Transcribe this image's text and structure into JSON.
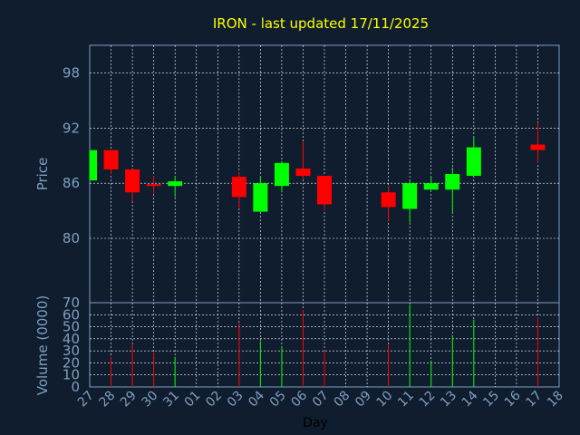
{
  "chart_data": {
    "type": "candlestick",
    "title": "IRON - last updated 17/11/2025",
    "xlabel": "Day",
    "x_ticks": [
      "27",
      "28",
      "29",
      "30",
      "31",
      "01",
      "02",
      "03",
      "04",
      "05",
      "06",
      "07",
      "08",
      "09",
      "10",
      "11",
      "12",
      "13",
      "14",
      "15",
      "16",
      "17",
      "18"
    ],
    "colors": {
      "up": "#00ff00",
      "down": "#ff0000",
      "background": "#0f1d2e",
      "text": "#7f9fbf",
      "title": "#ffff00",
      "grid": "#ffffff"
    },
    "price_panel": {
      "ylabel": "Price",
      "ylim": [
        73,
        101
      ],
      "yticks": [
        80,
        86,
        92,
        98
      ],
      "candles": [
        {
          "day": "27",
          "open": 86.3,
          "close": 89.6,
          "high": 89.6,
          "low": 86.3
        },
        {
          "day": "28",
          "open": 89.6,
          "close": 87.5,
          "high": 89.6,
          "low": 87.0
        },
        {
          "day": "29",
          "open": 87.5,
          "close": 85.0,
          "high": 87.5,
          "low": 84.0
        },
        {
          "day": "30",
          "open": 85.9,
          "close": 85.7,
          "high": 86.8,
          "low": 84.8
        },
        {
          "day": "31",
          "open": 85.7,
          "close": 86.2,
          "high": 86.8,
          "low": 84.5
        },
        {
          "day": "03",
          "open": 86.7,
          "close": 84.5,
          "high": 87.2,
          "low": 83.3
        },
        {
          "day": "04",
          "open": 82.9,
          "close": 86.0,
          "high": 86.8,
          "low": 82.9
        },
        {
          "day": "05",
          "open": 85.7,
          "close": 88.2,
          "high": 88.4,
          "low": 85.0
        },
        {
          "day": "06",
          "open": 87.6,
          "close": 86.8,
          "high": 90.5,
          "low": 86.5
        },
        {
          "day": "07",
          "open": 86.8,
          "close": 83.7,
          "high": 86.8,
          "low": 83.0
        },
        {
          "day": "10",
          "open": 85.0,
          "close": 83.4,
          "high": 85.7,
          "low": 81.9
        },
        {
          "day": "11",
          "open": 83.2,
          "close": 86.0,
          "high": 86.2,
          "low": 81.7
        },
        {
          "day": "12",
          "open": 85.3,
          "close": 86.0,
          "high": 86.8,
          "low": 85.3
        },
        {
          "day": "13",
          "open": 85.3,
          "close": 87.0,
          "high": 87.7,
          "low": 82.8
        },
        {
          "day": "14",
          "open": 86.8,
          "close": 89.9,
          "high": 91.0,
          "low": 86.8
        },
        {
          "day": "17",
          "open": 90.2,
          "close": 89.6,
          "high": 92.6,
          "low": 88.2
        }
      ]
    },
    "volume_panel": {
      "ylabel": "Volume (0000)",
      "ylim": [
        0,
        70
      ],
      "yticks": [
        0,
        10,
        20,
        30,
        40,
        50,
        60,
        70
      ],
      "bars": [
        {
          "day": "28",
          "value": 25,
          "direction": "down"
        },
        {
          "day": "29",
          "value": 35,
          "direction": "down"
        },
        {
          "day": "30",
          "value": 29,
          "direction": "down"
        },
        {
          "day": "31",
          "value": 25,
          "direction": "up"
        },
        {
          "day": "03",
          "value": 53,
          "direction": "down"
        },
        {
          "day": "04",
          "value": 38,
          "direction": "up"
        },
        {
          "day": "05",
          "value": 33,
          "direction": "up"
        },
        {
          "day": "06",
          "value": 64,
          "direction": "down"
        },
        {
          "day": "07",
          "value": 30,
          "direction": "down"
        },
        {
          "day": "10",
          "value": 35,
          "direction": "down"
        },
        {
          "day": "11",
          "value": 68,
          "direction": "up"
        },
        {
          "day": "12",
          "value": 22,
          "direction": "up"
        },
        {
          "day": "13",
          "value": 43,
          "direction": "up"
        },
        {
          "day": "14",
          "value": 56,
          "direction": "up"
        },
        {
          "day": "17",
          "value": 58,
          "direction": "down"
        }
      ]
    }
  }
}
